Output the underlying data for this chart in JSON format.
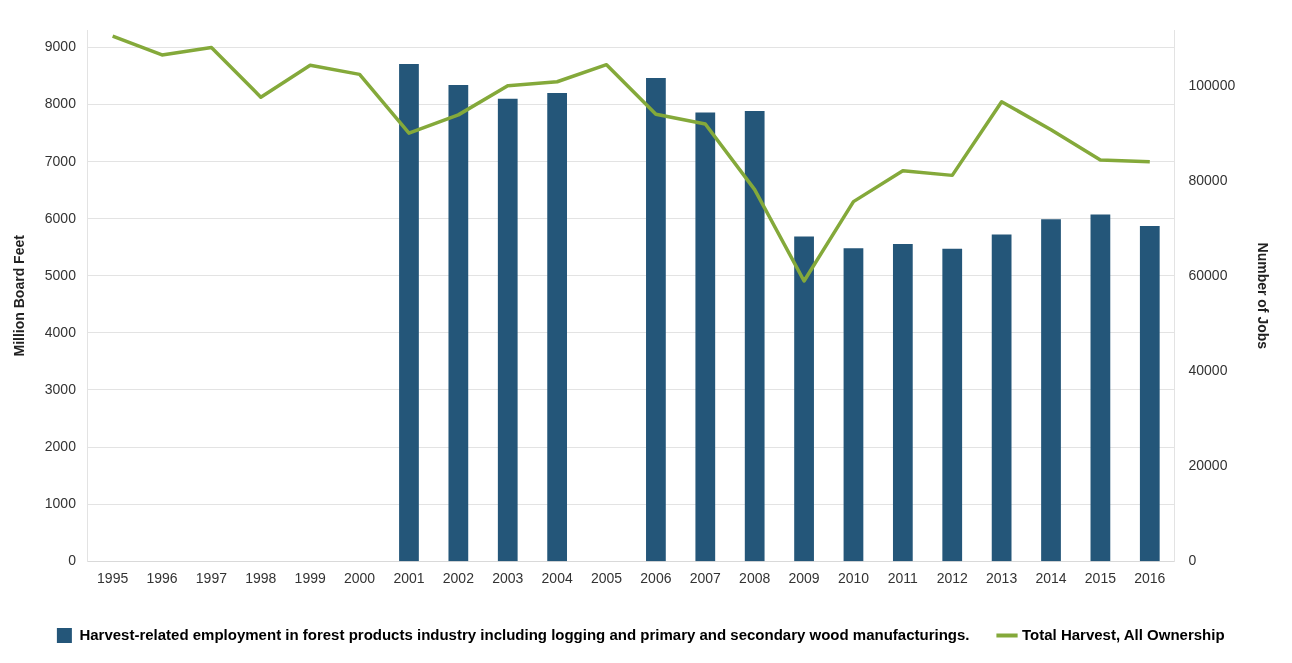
{
  "chart_data": {
    "type": "bar",
    "ylabel": "Million Board Feet",
    "y2label": "Number of Jobs",
    "categories": [
      "1995",
      "1996",
      "1997",
      "1998",
      "1999",
      "2000",
      "2001",
      "2002",
      "2003",
      "2004",
      "2005",
      "2006",
      "2007",
      "2008",
      "2009",
      "2010",
      "2011",
      "2012",
      "2013",
      "2014",
      "2015",
      "2016"
    ],
    "series": [
      {
        "name": "Harvest-related employment in forest products industry including logging and primary and secondary wood manufacturings.",
        "axis": "y2",
        "color": "#245679",
        "values": [
          null,
          null,
          null,
          null,
          null,
          null,
          104700,
          100300,
          97400,
          98600,
          null,
          101800,
          94500,
          94800,
          68400,
          65900,
          66800,
          65800,
          68800,
          72000,
          73000,
          70600
        ]
      },
      {
        "name": "Total Harvest, All Ownership",
        "type": "line",
        "axis": "y",
        "color": "#84a93a",
        "values": [
          9200,
          8870,
          9000,
          8130,
          8690,
          8530,
          7500,
          7820,
          8330,
          8400,
          8700,
          7830,
          7660,
          6510,
          4910,
          6300,
          6840,
          6760,
          8050,
          7560,
          7030,
          7000
        ]
      }
    ],
    "ylim": [
      0,
      9300
    ],
    "yticks": [
      0,
      1000,
      2000,
      3000,
      4000,
      5000,
      6000,
      7000,
      8000,
      9000
    ],
    "y2lim": [
      0,
      111800
    ],
    "y2ticks": [
      0,
      20000,
      40000,
      60000,
      80000,
      100000
    ],
    "grid": "y",
    "legend": "bottom",
    "marker": "none",
    "line_style": "solid"
  }
}
